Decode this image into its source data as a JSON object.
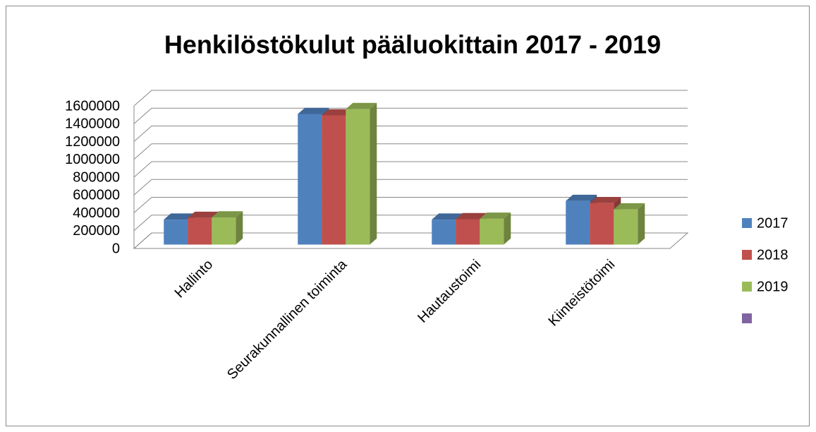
{
  "chart_data": {
    "type": "bar3d",
    "title": "Henkilöstökulut pääluokittain 2017 - 2019",
    "categories": [
      "Hallinto",
      "Seurakunnallinen toiminta",
      "Hautaustoimi",
      "Kiinteistötoimi"
    ],
    "series": [
      {
        "name": "2017",
        "color": "#4f81bd",
        "values": [
          280000,
          1465000,
          280000,
          490000
        ]
      },
      {
        "name": "2018",
        "color": "#c0504d",
        "values": [
          300000,
          1450000,
          285000,
          465000
        ]
      },
      {
        "name": "2019",
        "color": "#9bbb59",
        "values": [
          305000,
          1520000,
          290000,
          395000
        ]
      },
      {
        "color": "#8064a2",
        "values": [
          null,
          null,
          null,
          null
        ]
      }
    ],
    "ylim": [
      0,
      1600000
    ],
    "yticks": [
      0,
      200000,
      400000,
      600000,
      800000,
      1000000,
      1200000,
      1400000,
      1600000
    ],
    "grid": true,
    "legend": "right"
  }
}
